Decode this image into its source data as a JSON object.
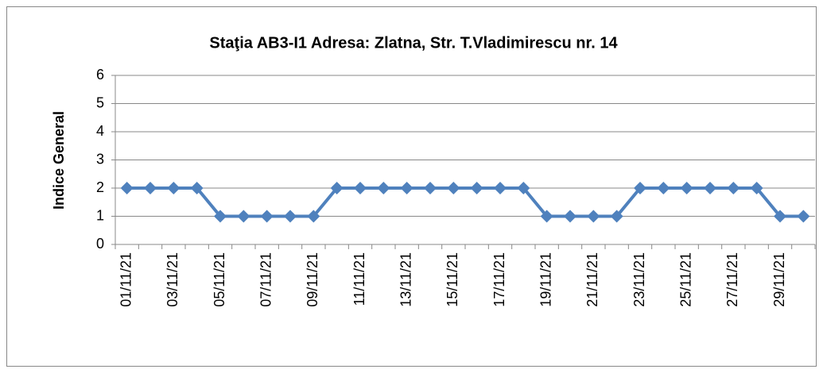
{
  "chart_data": {
    "type": "line",
    "title": "Staţia AB3-I1 Adresa: Zlatna, Str. T.Vladimirescu nr. 14",
    "y_label": "Indice General",
    "categories": [
      "01/11/21",
      null,
      "03/11/21",
      null,
      "05/11/21",
      null,
      "07/11/21",
      null,
      "09/11/21",
      null,
      "11/11/21",
      null,
      "13/11/21",
      null,
      "15/11/21",
      null,
      "17/11/21",
      null,
      "19/11/21",
      null,
      "21/11/21",
      null,
      "23/11/21",
      null,
      "25/11/21",
      null,
      "27/11/21",
      null,
      "29/11/21",
      null
    ],
    "values": [
      2,
      2,
      2,
      2,
      1,
      1,
      1,
      1,
      1,
      2,
      2,
      2,
      2,
      2,
      2,
      2,
      2,
      2,
      1,
      1,
      1,
      1,
      2,
      2,
      2,
      2,
      2,
      2,
      1,
      1
    ],
    "color": "#4f81bd",
    "ylim": [
      0,
      6
    ],
    "yticks": [
      0,
      1,
      2,
      3,
      4,
      5,
      6
    ],
    "grid": true
  }
}
